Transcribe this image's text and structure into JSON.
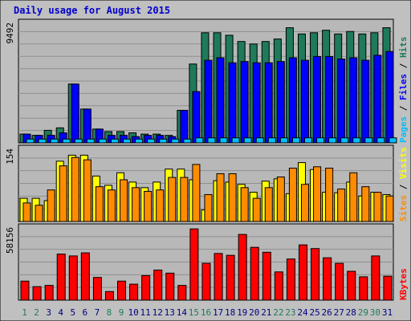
{
  "colors": {
    "background": "#c0c0c0",
    "panel": "#b8b8b8",
    "grid": "#8f8f8f",
    "title": "#0000cc",
    "hits": "#1f7a5a",
    "files": "#0000ff",
    "pages": "#00bfff",
    "visits": "#ffff00",
    "sites": "#ff8c00",
    "kbytes": "#ff0000",
    "weekend_day": "#1f7a5a",
    "weekday": "#000080"
  },
  "chart_data": {
    "type": "bar",
    "title": "Daily usage for August 2015",
    "categories": [
      "1",
      "2",
      "3",
      "4",
      "5",
      "6",
      "7",
      "8",
      "9",
      "10",
      "11",
      "12",
      "13",
      "14",
      "15",
      "16",
      "17",
      "18",
      "19",
      "20",
      "21",
      "22",
      "23",
      "24",
      "25",
      "26",
      "27",
      "28",
      "29",
      "30",
      "31"
    ],
    "weekend_days": [
      1,
      2,
      8,
      9,
      15,
      16,
      22,
      23,
      29,
      30
    ],
    "panels": [
      {
        "id": "requests",
        "ylabel": [
          "Pages",
          "Files",
          "Hits"
        ],
        "ymax_label": "9492",
        "ylim": [
          0,
          9492
        ],
        "series": [
          {
            "name": "Hits",
            "values": [
              700,
              600,
              1000,
              1200,
              4700,
              2700,
              1100,
              900,
              900,
              800,
              700,
              700,
              600,
              2600,
              6300,
              8800,
              8800,
              8600,
              8100,
              7900,
              8100,
              8300,
              9200,
              8700,
              8800,
              9000,
              8700,
              8900,
              8700,
              8800,
              9200
            ]
          },
          {
            "name": "Files",
            "values": [
              700,
              600,
              600,
              800,
              4700,
              2700,
              1100,
              600,
              600,
              500,
              600,
              600,
              500,
              2600,
              4100,
              6600,
              6800,
              6400,
              6500,
              6400,
              6400,
              6500,
              6800,
              6600,
              6900,
              6900,
              6700,
              6800,
              6600,
              7000,
              7300
            ]
          },
          {
            "name": "Pages",
            "values": [
              300,
              300,
              300,
              300,
              300,
              300,
              300,
              300,
              300,
              300,
              300,
              300,
              300,
              300,
              400,
              400,
              400,
              400,
              400,
              400,
              400,
              400,
              400,
              400,
              400,
              400,
              400,
              400,
              400,
              400,
              400
            ]
          }
        ]
      },
      {
        "id": "visitors",
        "ylabel": [
          "Sites",
          "Visits"
        ],
        "ymax_label": "154",
        "ylim": [
          0,
          154
        ],
        "series": [
          {
            "name": "Visits",
            "values": [
              50,
              50,
              45,
              130,
              143,
              143,
              98,
              78,
              105,
              85,
              73,
              85,
              113,
              113,
              90,
              25,
              88,
              85,
              80,
              63,
              87,
              92,
              60,
              127,
              112,
              63,
              62,
              85,
              55,
              63,
              58
            ]
          },
          {
            "name": "Sites",
            "values": [
              40,
              35,
              68,
              120,
              138,
              133,
              75,
              68,
              90,
              73,
              65,
              68,
              95,
              95,
              123,
              58,
              103,
              103,
              73,
              50,
              73,
              96,
              115,
              80,
              118,
              115,
              70,
              105,
              75,
              63,
              55
            ]
          }
        ]
      },
      {
        "id": "bytes",
        "ylabel": [
          "KBytes"
        ],
        "ymax_label": "58156",
        "ylim": [
          0,
          58156
        ],
        "series": [
          {
            "name": "KBytes",
            "values": [
              15500,
              11000,
              12000,
              37500,
              36000,
              38500,
              18500,
              7000,
              15500,
              13000,
              20000,
              24500,
              22000,
              12000,
              58000,
              30000,
              38000,
              36500,
              53500,
              43000,
              39000,
              23000,
              33500,
              45000,
              42000,
              34500,
              30000,
              23500,
              19000,
              36000,
              19500
            ]
          }
        ]
      }
    ]
  }
}
